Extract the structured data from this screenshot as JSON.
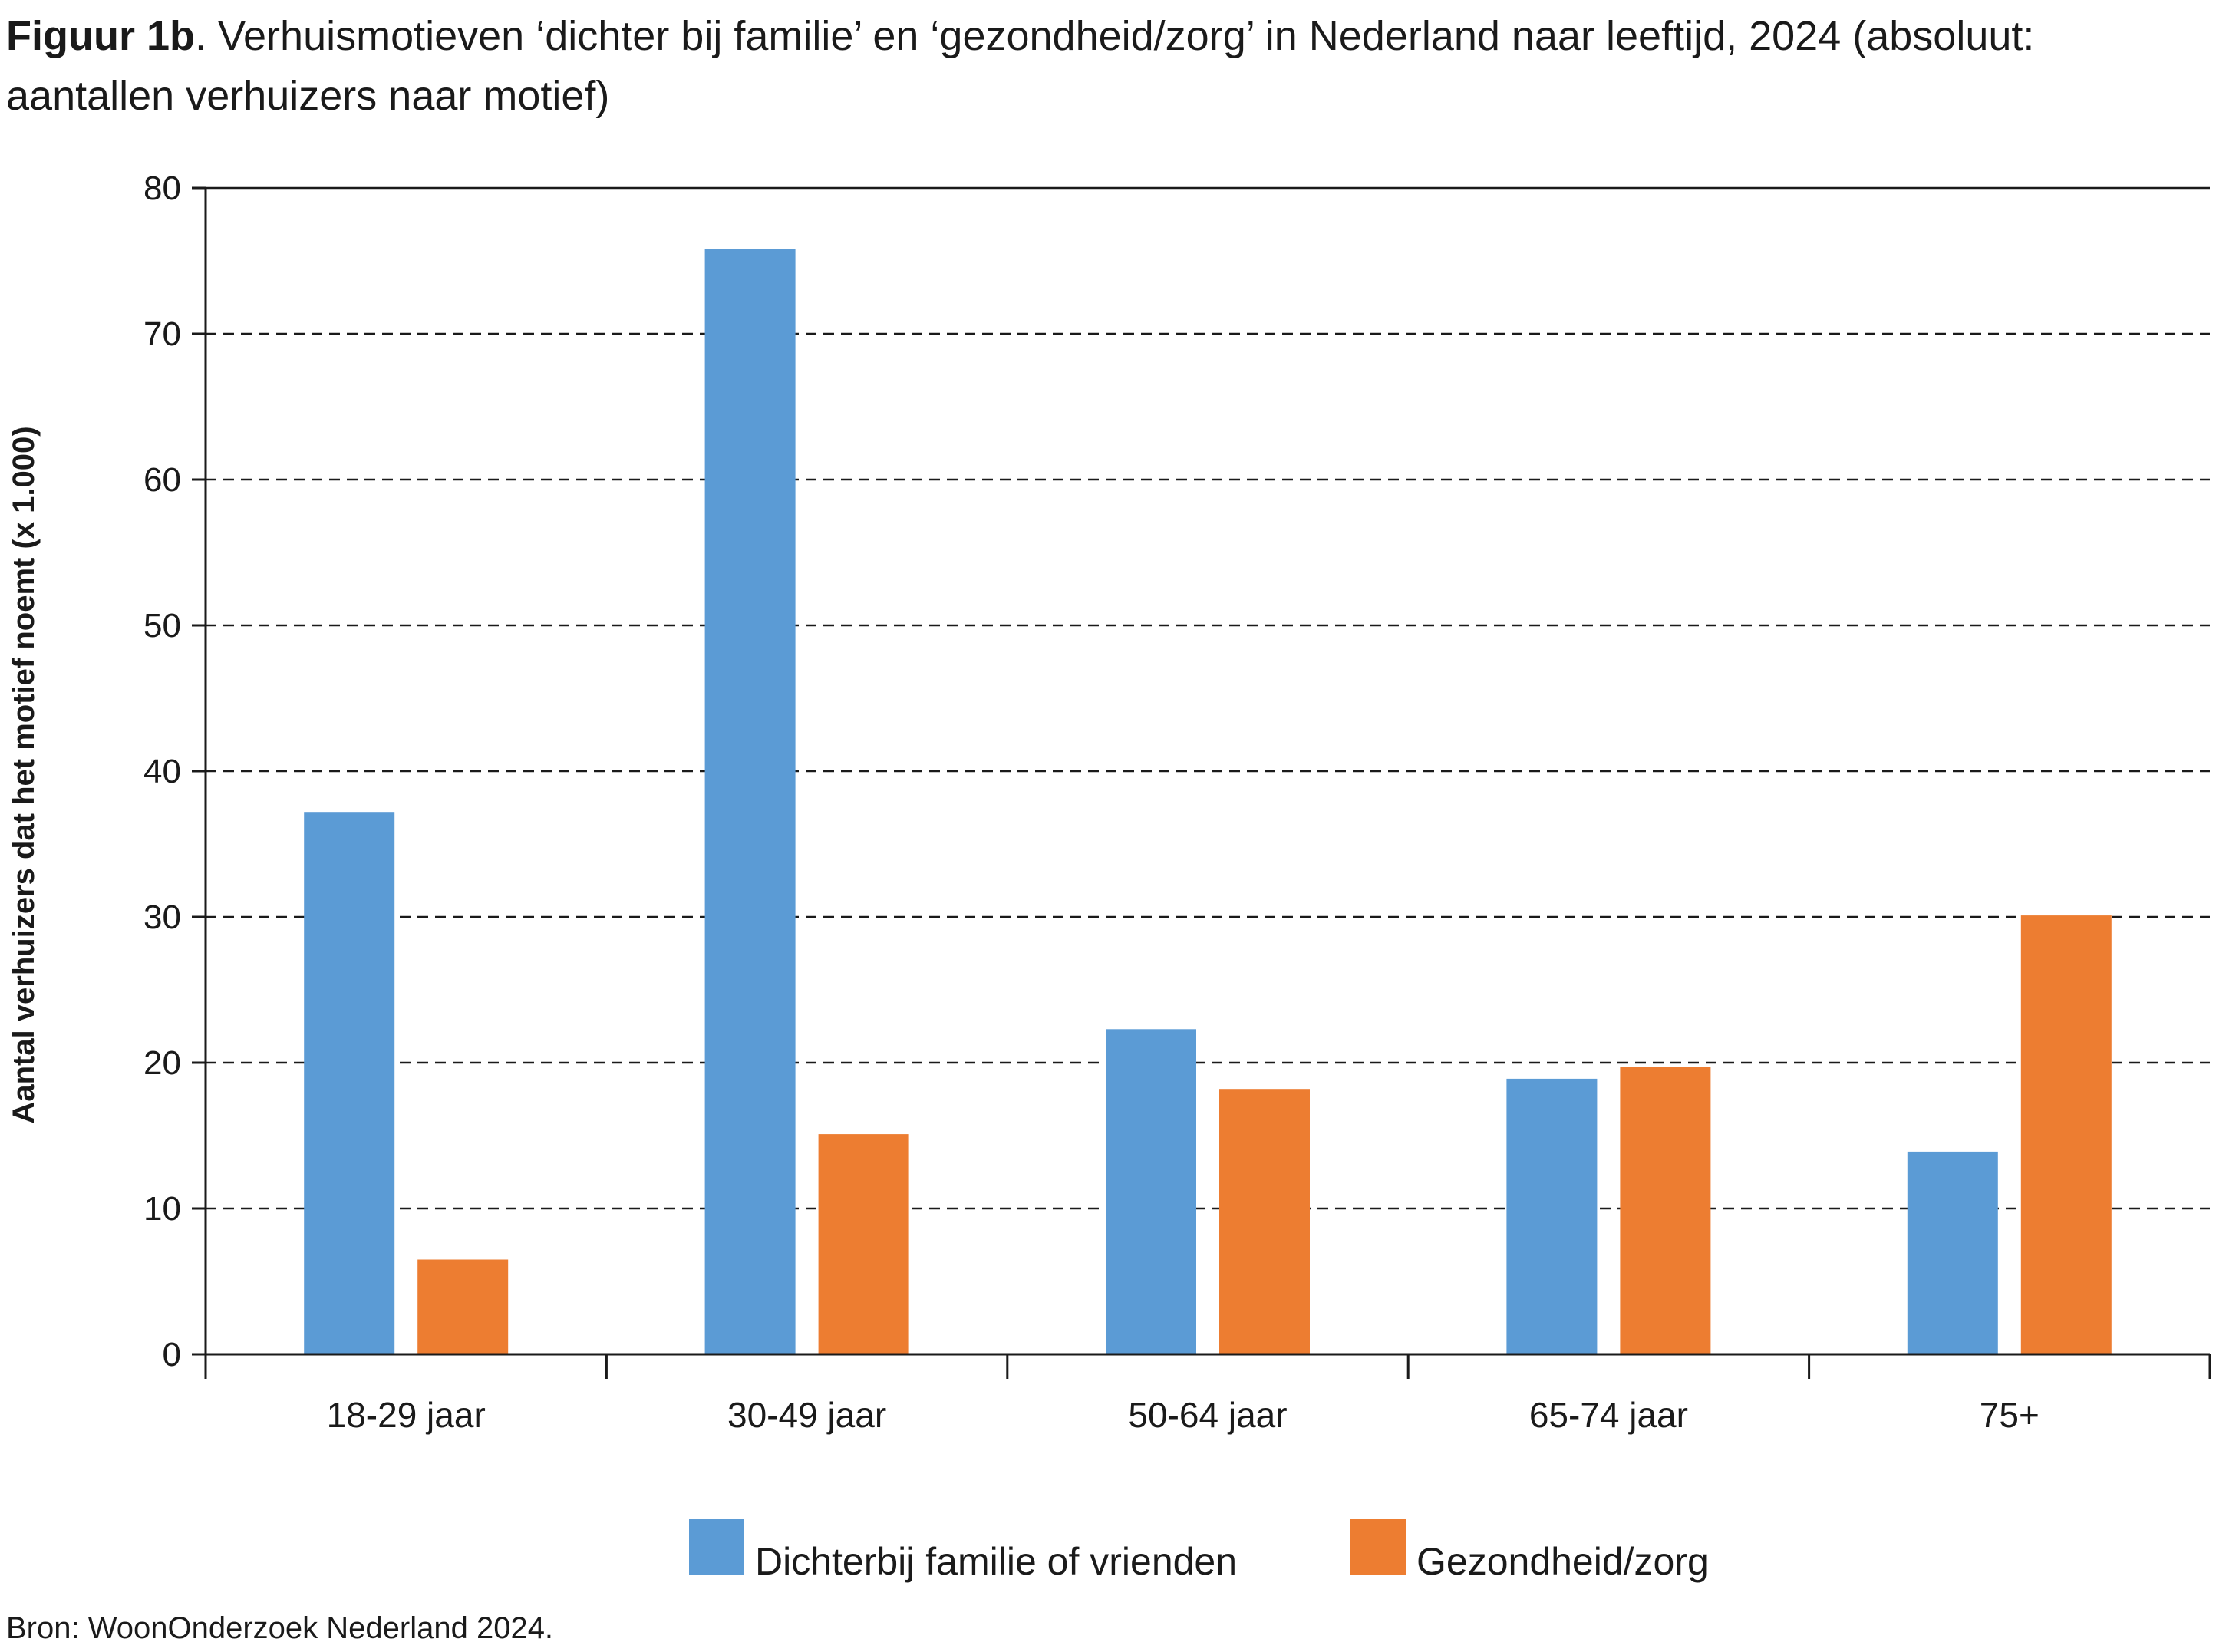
{
  "title": {
    "prefix": "Figuur 1b",
    "text": ". Verhuismotieven ‘dichter bij familie’ en ‘gezondheid/zorg’ in Nederland naar leeftijd, 2024 (absoluut: aantallen verhuizers naar motief)"
  },
  "source": "Bron: WoonOnderzoek Nederland 2024.",
  "chart_data": {
    "type": "bar",
    "ylabel": "Aantal verhuizers dat het motief noemt (x 1.000)",
    "xlabel": "",
    "ylim": [
      0,
      80
    ],
    "yticks": [
      0,
      10,
      20,
      30,
      40,
      50,
      60,
      70,
      80
    ],
    "grid": "dashed horizontal",
    "legend_position": "bottom",
    "categories": [
      "18-29 jaar",
      "30-49 jaar",
      "50-64 jaar",
      "65-74 jaar",
      "75+"
    ],
    "series": [
      {
        "name": "Dichterbij familie of vrienden",
        "color": "#5b9bd5",
        "values": [
          37.2,
          75.8,
          22.3,
          18.9,
          13.9
        ]
      },
      {
        "name": "Gezondheid/zorg",
        "color": "#ed7d31",
        "values": [
          6.5,
          15.1,
          18.2,
          19.7,
          30.1
        ]
      }
    ]
  }
}
